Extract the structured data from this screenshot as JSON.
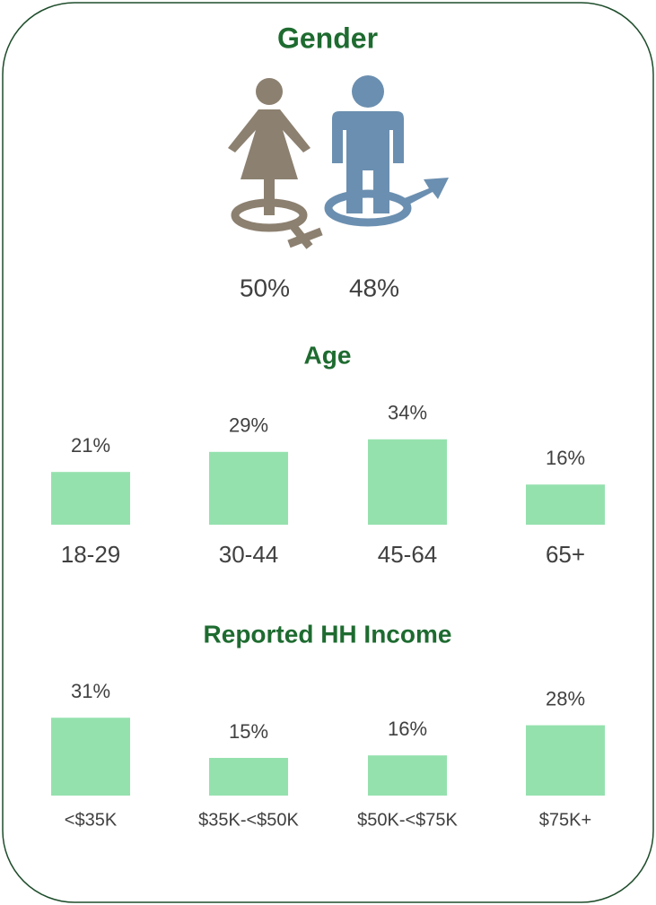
{
  "chart_data": [
    {
      "type": "pictograph",
      "title": "Gender",
      "values": [
        50,
        48
      ],
      "value_labels": [
        "50%",
        "48%"
      ],
      "colors": [
        "#8c8070",
        "#6b8fb0"
      ]
    },
    {
      "type": "bar",
      "title": "Age",
      "categories": [
        "18-29",
        "30-44",
        "45-64",
        "65+"
      ],
      "values": [
        21,
        29,
        34,
        16
      ],
      "value_labels": [
        "21%",
        "29%",
        "34%",
        "16%"
      ],
      "color": "#95e1ae"
    },
    {
      "type": "bar",
      "title": "Reported HH Income",
      "categories": [
        "<$35K",
        "$35K-<$50K",
        "$50K-<$75K",
        "$75K+"
      ],
      "values": [
        31,
        15,
        16,
        28
      ],
      "value_labels": [
        "31%",
        "15%",
        "16%",
        "28%"
      ],
      "color": "#95e1ae"
    }
  ]
}
